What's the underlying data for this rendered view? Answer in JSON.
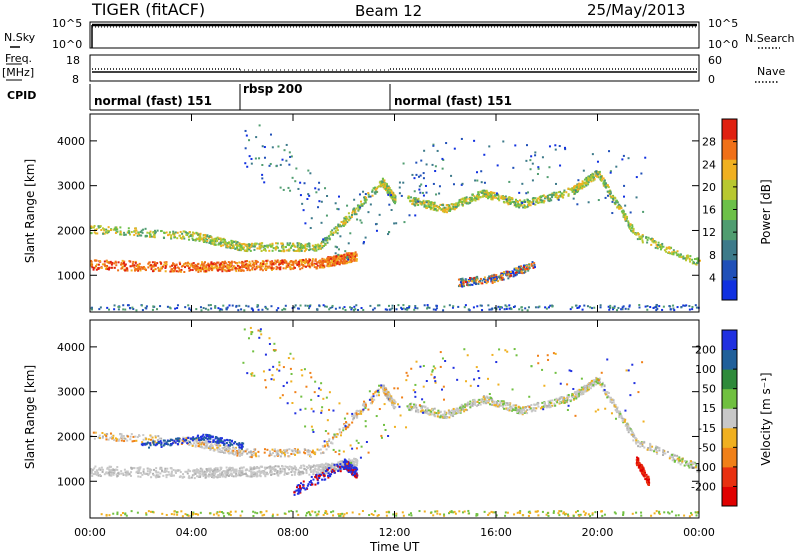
{
  "header": {
    "station": "TIGER (fitACF)",
    "beam": "Beam 12",
    "date": "25/May/2013"
  },
  "side_labels": {
    "nsky": "N.Sky",
    "freq": "Freq.",
    "freq_unit": "[MHz]",
    "cpid": "CPID",
    "nsearch": "N.Search",
    "nave": "Nave"
  },
  "noise_panel": {
    "left_ticks": [
      "10^5",
      "10^0"
    ],
    "right_ticks": [
      "10^5",
      "10^0"
    ]
  },
  "freq_panel": {
    "left_ticks": [
      "18",
      "8"
    ],
    "right_ticks": [
      "60",
      "0"
    ]
  },
  "cpid_segments": [
    {
      "start_hour": 0,
      "end_hour": 6,
      "label": "normal (fast) 151"
    },
    {
      "start_hour": 6,
      "end_hour": 12,
      "label": "rbsp 200"
    },
    {
      "start_hour": 12,
      "end_hour": 24,
      "label": "normal (fast) 151"
    }
  ],
  "colors": {
    "power_scale": [
      "#1030e0",
      "#2050b8",
      "#3d7a8a",
      "#509d70",
      "#6cc048",
      "#b8c830",
      "#f0b020",
      "#f07018",
      "#e02010"
    ],
    "velocity_scale": [
      "#2030e0",
      "#20609a",
      "#2e8a3a",
      "#70c040",
      "#c8c8c8",
      "#f0b020",
      "#f08018",
      "#e83010",
      "#e00000"
    ]
  },
  "chart_data": [
    {
      "type": "heatmap",
      "ylabel": "Slant Range [km]",
      "x": [
        "00:00",
        "04:00",
        "08:00",
        "12:00",
        "16:00",
        "20:00",
        "00:00"
      ],
      "ylim": [
        180,
        4600
      ],
      "yticks": [
        1000,
        2000,
        3000,
        4000
      ],
      "colorbar": {
        "label": "Power [dB]",
        "ticks": [
          "4",
          "8",
          "12",
          "16",
          "20",
          "24",
          "28"
        ],
        "range": [
          0,
          30
        ]
      }
    },
    {
      "type": "heatmap",
      "ylabel": "Slant Range [km]",
      "xlabel": "Time UT",
      "x": [
        "00:00",
        "04:00",
        "08:00",
        "12:00",
        "16:00",
        "20:00",
        "00:00"
      ],
      "ylim": [
        180,
        4600
      ],
      "yticks": [
        1000,
        2000,
        3000,
        4000
      ],
      "colorbar": {
        "label": "Velocity [m s⁻¹]",
        "ticks": [
          "200",
          "100",
          "50",
          "15",
          "-15",
          "-50",
          "-100",
          "-200"
        ],
        "range": [
          -250,
          250
        ]
      }
    }
  ]
}
